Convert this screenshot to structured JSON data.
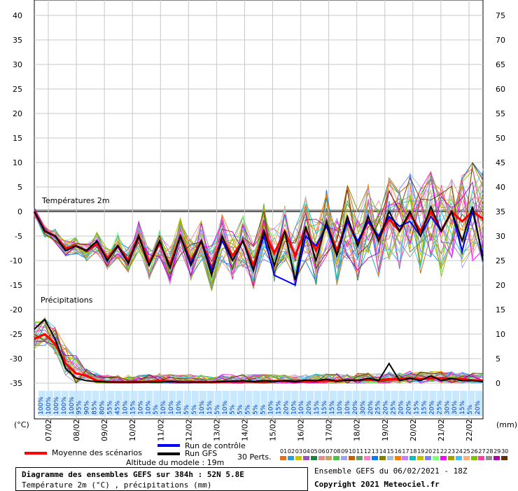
{
  "chart_data": {
    "type": "line",
    "title": "Diagramme des ensembles GEFS sur 384h : 52N 5.8E",
    "subtitle": "Température 2m (°C) , précipitations (mm)",
    "left_unit": "(°C)",
    "right_unit": "(mm)",
    "temp_panel_label": "Températures 2m",
    "precip_panel_label": "Précipitations",
    "left_axis_ticks": [
      40,
      35,
      30,
      25,
      20,
      15,
      10,
      5,
      0,
      -5,
      -10,
      -15,
      -20,
      -25,
      -30,
      -35
    ],
    "right_axis_ticks": [
      75,
      70,
      65,
      60,
      55,
      50,
      45,
      40,
      35,
      30,
      25,
      20,
      15,
      10,
      5,
      0
    ],
    "temp_ylim": [
      -35,
      40
    ],
    "precip_ylim": [
      0,
      75
    ],
    "x_dates": [
      "07/02",
      "08/02",
      "09/02",
      "10/02",
      "11/02",
      "12/02",
      "13/02",
      "14/02",
      "15/02",
      "16/02",
      "17/02",
      "18/02",
      "19/02",
      "20/02",
      "21/02",
      "22/02"
    ],
    "snow_probabilities": [
      "100%",
      "100%",
      "100%",
      "100%",
      "100%",
      "95%",
      "90%",
      "85%",
      "80%",
      "55%",
      "45%",
      "10%",
      "15%",
      "10%",
      "10%",
      "5%",
      "10%",
      "10%",
      "10%",
      "5%",
      "5%",
      "10%",
      "15%",
      "5%",
      "10%",
      "5%",
      "5%",
      "5%",
      "5%",
      "5%",
      "10%",
      "15%",
      "20%",
      "10%",
      "10%",
      "20%",
      "15%",
      "15%",
      "15%",
      "10%",
      "10%",
      "20%",
      "30%",
      "20%",
      "25%",
      "20%",
      "25%",
      "20%",
      "20%",
      "15%",
      "15%",
      "20%",
      "25%",
      "30%",
      "30%",
      "15%",
      "5%",
      "20%"
    ],
    "series": [
      {
        "name": "Moyenne des scénarios",
        "color": "#ff0000",
        "temperature": [
          0,
          -4,
          -5,
          -7.5,
          -7,
          -8,
          -6.5,
          -9.5,
          -7,
          -10,
          -5,
          -10.5,
          -6.5,
          -11,
          -5,
          -10,
          -6,
          -11.5,
          -5.5,
          -9,
          -6,
          -11,
          -4,
          -8.5,
          -4,
          -9,
          -3.5,
          -8,
          -2.5,
          -8,
          -2,
          -6.5,
          -2,
          -5.5,
          -1.5,
          -4,
          -0.5,
          -4,
          0,
          -4,
          0,
          -2,
          0,
          -1.5
        ],
        "precipitation": [
          9,
          10,
          8,
          4,
          2,
          1.5,
          0.5,
          0.3,
          0.2,
          0.2,
          0.2,
          0.3,
          0.5,
          0.4,
          0.3,
          0.3,
          0.2,
          0.2,
          0.3,
          0.3,
          0.3,
          0.3,
          0.3,
          0.4,
          0.4,
          0.3,
          0.4,
          0.4,
          0.5,
          0.5,
          0.6,
          0.6,
          0.7,
          0.6,
          0.8,
          0.8,
          1,
          0.8,
          1,
          1,
          0.9,
          0.8,
          0.6,
          0.5
        ]
      },
      {
        "name": "Run de contrôle",
        "color": "#0000ff",
        "temperature": [
          0,
          -4,
          -5,
          -8,
          -7,
          -8,
          -6,
          -10,
          -7,
          -10.5,
          -5,
          -11,
          -6,
          -11.5,
          -5,
          -10.5,
          -6,
          -12,
          -6,
          -10,
          -6,
          -12,
          -5,
          -13,
          -14,
          -15,
          -5,
          -7,
          -3,
          -9,
          -2,
          -6,
          -2,
          -5,
          -1,
          -3,
          -2,
          -5,
          -1,
          -4,
          0,
          -8,
          0,
          -9
        ]
      },
      {
        "name": "Run GFS",
        "color": "#000000",
        "temperature": [
          0,
          -4,
          -5,
          -8,
          -7,
          -8,
          -6,
          -10,
          -7,
          -10.5,
          -5,
          -11,
          -6,
          -11.5,
          -5,
          -11,
          -6,
          -13,
          -5,
          -10,
          -6,
          -12,
          -4,
          -11,
          -4,
          -14,
          -3,
          -10,
          -2,
          -9,
          -1,
          -7,
          -1,
          -6,
          0,
          -4,
          0,
          -5,
          1,
          -4,
          0,
          -6,
          1,
          -10
        ],
        "precipitation": [
          11,
          13,
          9,
          3,
          1,
          0.5,
          0.3,
          0.2,
          0.2,
          0.2,
          0.2,
          0.2,
          0.2,
          0.3,
          0.2,
          0.2,
          0.2,
          0.2,
          0.3,
          0.4,
          0.5,
          0.3,
          0.5,
          0.4,
          0.5,
          0.3,
          0.6,
          0.5,
          0.8,
          0.4,
          0.6,
          0.5,
          1,
          0.5,
          4,
          0.5,
          1,
          0.5,
          1.5,
          0.5,
          1,
          0.5,
          0.5,
          0.3
        ]
      }
    ],
    "perturbation_label": "30 Perts.",
    "perturbation_numbers": [
      "01",
      "02",
      "03",
      "04",
      "05",
      "06",
      "07",
      "08",
      "09",
      "10",
      "11",
      "12",
      "13",
      "14",
      "15",
      "16",
      "17",
      "18",
      "19",
      "20",
      "21",
      "22",
      "23",
      "24",
      "25",
      "26",
      "27",
      "28",
      "29",
      "30"
    ],
    "perturbation_colors": [
      "#e07020",
      "#20a0e0",
      "#c8c800",
      "#a050c0",
      "#208040",
      "#e09090",
      "#d0a060",
      "#50c050",
      "#a0a0ff",
      "#c06000",
      "#60a060",
      "#ff80c0",
      "#0080ff",
      "#808000",
      "#a0c0e0",
      "#ff8000",
      "#c080ff",
      "#00c0c0",
      "#c0c000",
      "#8080ff",
      "#80ff80",
      "#ff00ff",
      "#a0a000",
      "#40c0ff",
      "#ffb080",
      "#80c000",
      "#ff40a0",
      "#909090",
      "#b000b0",
      "#603000"
    ],
    "altitude_text": "Altitude du modele : 19m",
    "run_text": "Ensemble GEFS du 06/02/2021 - 18Z",
    "copyright_text": "Copyright 2021 Meteociel.fr"
  }
}
